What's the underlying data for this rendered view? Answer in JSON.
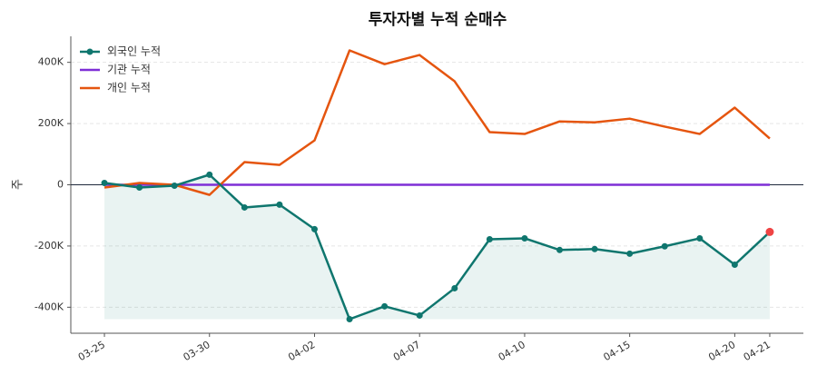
{
  "chart_data": {
    "type": "line",
    "title": "투자자별 누적 순매수",
    "y_label": "주",
    "categories": [
      "03-25",
      null,
      null,
      "03-30",
      null,
      null,
      "04-02",
      null,
      null,
      "04-07",
      null,
      null,
      "04-10",
      null,
      null,
      "04-15",
      null,
      null,
      "04-20",
      "04-21"
    ],
    "series": [
      {
        "name": "외국인 누적",
        "color": "#0f766e",
        "values": [
          6000,
          -9000,
          -3000,
          33000,
          -74000,
          -65000,
          -145000,
          -439000,
          -397000,
          -427000,
          -338000,
          -178000,
          -175000,
          -213000,
          -210000,
          -225000,
          -201000,
          -175000,
          -261000,
          -154000
        ]
      },
      {
        "name": "기관 누적",
        "color": "#7e2fd6",
        "values": [
          0,
          0,
          0,
          0,
          0,
          0,
          0,
          0,
          0,
          0,
          0,
          0,
          0,
          0,
          0,
          0,
          0,
          0,
          0,
          0
        ]
      },
      {
        "name": "개인 누적",
        "color": "#e5550f",
        "values": [
          -9000,
          6000,
          0,
          -33000,
          74000,
          65000,
          145000,
          439000,
          394000,
          424000,
          338000,
          172000,
          166000,
          207000,
          204000,
          216000,
          190000,
          166000,
          252000,
          151000
        ]
      }
    ],
    "ylim": [
      -485000,
      485000
    ],
    "yticks": [
      {
        "value": -400000,
        "label": "-400K"
      },
      {
        "value": -200000,
        "label": "-200K"
      },
      0,
      {
        "value": 200000,
        "label": "200K"
      },
      {
        "value": 400000,
        "label": "400K"
      }
    ],
    "grid": true,
    "legend": "upper left",
    "highlight_color": "#ef4444"
  }
}
